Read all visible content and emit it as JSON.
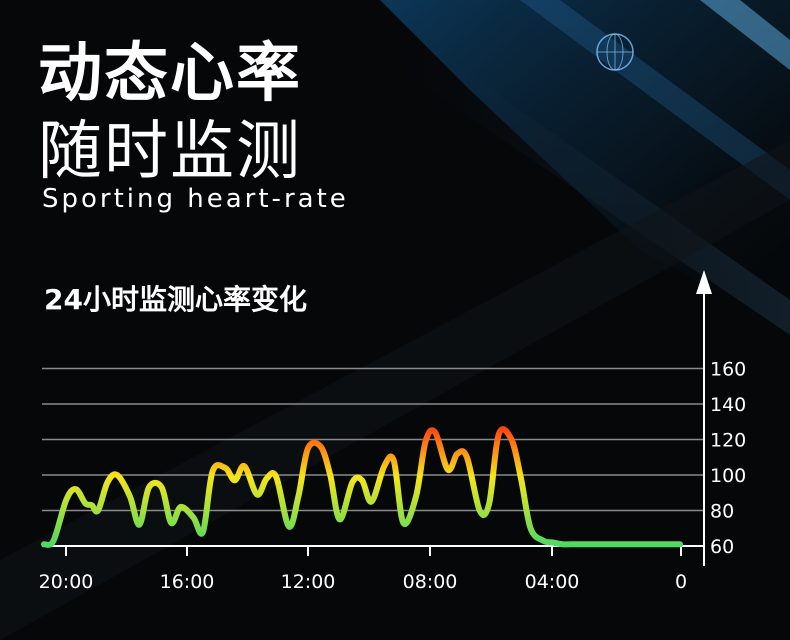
{
  "headline": {
    "line1": "动态心率",
    "line2": "随时监测",
    "subtitle": "Sporting heart-rate"
  },
  "chart_data": {
    "type": "line",
    "title": "24小时监测心率变化",
    "xlabel": "",
    "ylabel": "",
    "x_ticks": [
      "20:00",
      "16:00",
      "12:00",
      "08:00",
      "04:00",
      "0"
    ],
    "y_ticks": [
      60,
      80,
      100,
      120,
      140,
      160
    ],
    "ylim": [
      60,
      160
    ],
    "xlim": [
      20,
      0
    ],
    "grid": true,
    "series": [
      {
        "x": [
          20,
          19.7,
          19.3,
          19.0,
          18.7,
          18.5,
          18.3,
          18.0,
          17.7,
          17.3,
          17.0,
          16.7,
          16.3,
          16.0,
          15.7,
          15.3,
          15.0,
          14.7,
          14.3,
          14.0,
          13.7,
          13.3,
          13.0,
          12.7,
          12.3,
          12.0,
          11.7,
          11.3,
          11.0,
          10.7,
          10.3,
          10.0,
          9.7,
          9.3,
          9.0,
          8.7,
          8.3,
          8.0,
          7.7,
          7.3,
          7.0,
          6.7,
          6.3,
          6.0,
          5.7,
          5.3,
          5.0,
          4.7,
          4.3,
          4.0,
          3.7,
          3.3,
          3.0,
          2.7,
          2.3,
          2.0,
          1.7,
          1.3,
          1.0,
          0.7,
          0.3,
          0
        ],
        "values": [
          61,
          63,
          86,
          92,
          84,
          83,
          80,
          96,
          100,
          88,
          72,
          93,
          93,
          73,
          82,
          76,
          68,
          102,
          104,
          97,
          105,
          89,
          98,
          99,
          71,
          88,
          115,
          116,
          100,
          75,
          96,
          97,
          85,
          105,
          108,
          73,
          88,
          119,
          124,
          103,
          112,
          110,
          80,
          84,
          123,
          120,
          98,
          70,
          63,
          62,
          61,
          61,
          61,
          61,
          61,
          61,
          61,
          61,
          61,
          61,
          61,
          61
        ]
      }
    ]
  },
  "colors": {
    "low": "#4cd964",
    "mid": "#f5e61a",
    "high": "#ff2a10",
    "grid": "#8a8a8a",
    "axis": "#ffffff"
  }
}
